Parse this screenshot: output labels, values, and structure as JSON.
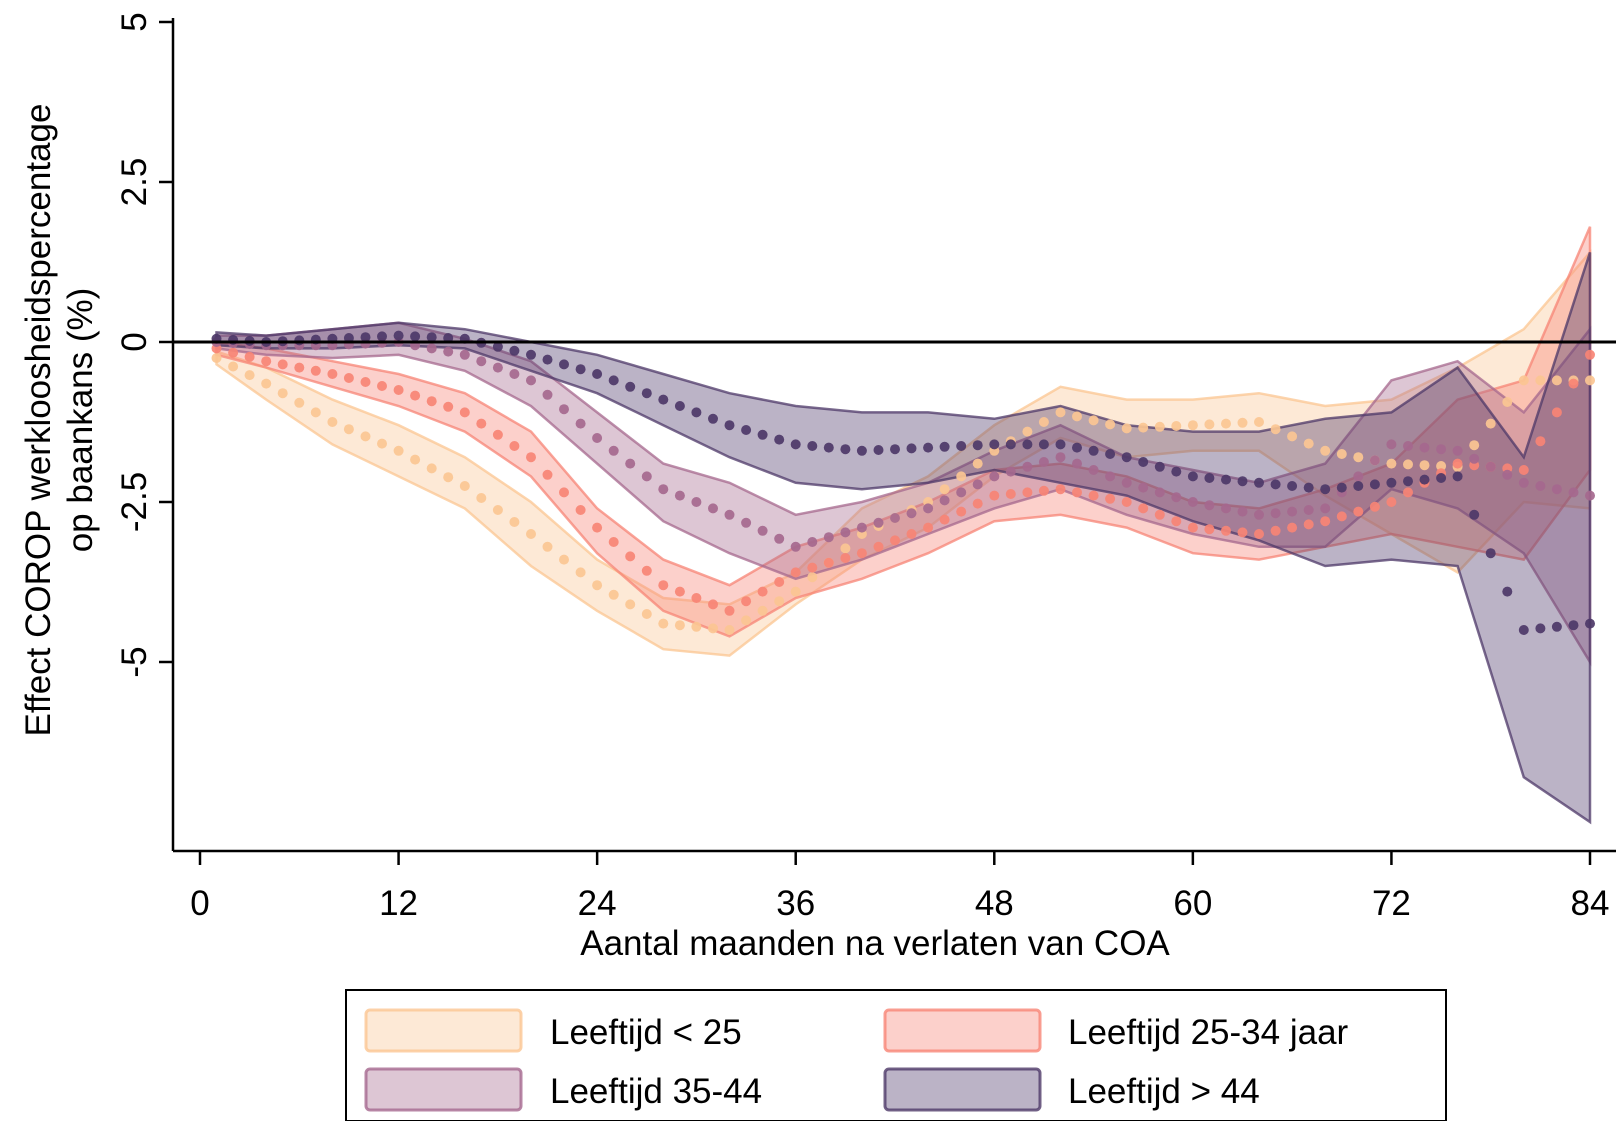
{
  "chart_data": {
    "type": "scatter",
    "title": "",
    "xlabel": "Aantal maanden na verlaten van COA",
    "ylabel_line1": "Effect COROP werkloosheidspercentage",
    "ylabel_line2": "op baankans (%)",
    "xlim": [
      0,
      84
    ],
    "ylim": [
      -7.75,
      5
    ],
    "x_ticks": [
      0,
      12,
      24,
      36,
      48,
      60,
      72,
      84
    ],
    "x_tick_labels": [
      "0",
      "12",
      "24",
      "36",
      "48",
      "60",
      "72",
      "84"
    ],
    "y_ticks": [
      5,
      2.5,
      0,
      -2.5,
      -5
    ],
    "y_tick_labels": [
      "5",
      "2.5",
      "0",
      "-2.5",
      "-5"
    ],
    "reference_line_y": 0,
    "grid": false,
    "legend_position": "bottom",
    "series": [
      {
        "name": "Leeftijd < 25",
        "color": "#fbc592",
        "x": [
          1,
          4,
          8,
          12,
          16,
          20,
          24,
          28,
          32,
          36,
          40,
          44,
          48,
          52,
          56,
          60,
          64,
          68,
          72,
          76,
          80,
          84
        ],
        "y": [
          -0.25,
          -0.65,
          -1.25,
          -1.7,
          -2.25,
          -3.0,
          -3.8,
          -4.4,
          -4.5,
          -3.9,
          -3.0,
          -2.5,
          -1.7,
          -1.1,
          -1.35,
          -1.3,
          -1.25,
          -1.7,
          -1.9,
          -1.95,
          -0.6,
          -0.6
        ],
        "lower": [
          -0.35,
          -0.9,
          -1.6,
          -2.1,
          -2.6,
          -3.5,
          -4.2,
          -4.8,
          -4.9,
          -4.1,
          -3.4,
          -2.9,
          -2.1,
          -1.5,
          -1.8,
          -1.7,
          -1.7,
          -2.4,
          -3.0,
          -3.6,
          -2.5,
          -2.6
        ],
        "upper": [
          -0.15,
          -0.4,
          -0.9,
          -1.3,
          -1.8,
          -2.5,
          -3.4,
          -4.0,
          -4.1,
          -3.6,
          -2.6,
          -2.1,
          -1.3,
          -0.7,
          -0.9,
          -0.9,
          -0.8,
          -1.0,
          -0.9,
          -0.4,
          0.2,
          1.4
        ]
      },
      {
        "name": "Leeftijd 25-34 jaar",
        "color": "#f78475",
        "x": [
          1,
          4,
          8,
          12,
          16,
          20,
          24,
          28,
          32,
          36,
          40,
          44,
          48,
          52,
          56,
          60,
          64,
          68,
          72,
          76,
          80,
          84
        ],
        "y": [
          -0.1,
          -0.3,
          -0.5,
          -0.75,
          -1.1,
          -1.8,
          -2.9,
          -3.8,
          -4.2,
          -3.6,
          -3.3,
          -2.9,
          -2.4,
          -2.3,
          -2.5,
          -2.9,
          -3.0,
          -2.8,
          -2.5,
          -1.9,
          -2.0,
          -0.2
        ],
        "lower": [
          -0.2,
          -0.4,
          -0.7,
          -1.0,
          -1.4,
          -2.1,
          -3.3,
          -4.2,
          -4.6,
          -4.0,
          -3.7,
          -3.3,
          -2.8,
          -2.7,
          -2.9,
          -3.3,
          -3.4,
          -3.2,
          -3.0,
          -3.2,
          -3.4,
          -2.0
        ],
        "upper": [
          0.0,
          -0.1,
          -0.3,
          -0.5,
          -0.8,
          -1.4,
          -2.6,
          -3.4,
          -3.8,
          -3.2,
          -2.9,
          -2.5,
          -2.0,
          -1.9,
          -2.1,
          -2.5,
          -2.6,
          -2.3,
          -1.9,
          -0.9,
          -0.6,
          1.8
        ]
      },
      {
        "name": "Leeftijd 35-44",
        "color": "#a5688e",
        "x": [
          1,
          4,
          8,
          12,
          16,
          20,
          24,
          28,
          32,
          36,
          40,
          44,
          48,
          52,
          56,
          60,
          64,
          68,
          72,
          76,
          80,
          84
        ],
        "y": [
          0.0,
          -0.05,
          -0.05,
          0.0,
          -0.2,
          -0.6,
          -1.5,
          -2.3,
          -2.7,
          -3.2,
          -2.9,
          -2.6,
          -2.1,
          -1.8,
          -2.2,
          -2.5,
          -2.7,
          -2.6,
          -1.6,
          -1.7,
          -2.2,
          -2.4
        ],
        "lower": [
          -0.1,
          -0.2,
          -0.25,
          -0.2,
          -0.45,
          -1.0,
          -1.9,
          -2.8,
          -3.3,
          -3.7,
          -3.4,
          -3.0,
          -2.6,
          -2.3,
          -2.7,
          -3.0,
          -3.2,
          -3.2,
          -2.3,
          -2.6,
          -3.3,
          -5.0
        ],
        "upper": [
          0.1,
          0.1,
          0.2,
          0.3,
          0.05,
          -0.3,
          -1.1,
          -1.9,
          -2.2,
          -2.7,
          -2.5,
          -2.2,
          -1.7,
          -1.3,
          -1.8,
          -2.0,
          -2.2,
          -1.9,
          -0.6,
          -0.3,
          -1.1,
          0.2
        ]
      },
      {
        "name": "Leeftijd > 44",
        "color": "#4d3868",
        "x": [
          1,
          4,
          8,
          12,
          16,
          20,
          24,
          28,
          32,
          36,
          40,
          44,
          48,
          52,
          56,
          60,
          64,
          68,
          72,
          76,
          80,
          84
        ],
        "y": [
          0.05,
          0.0,
          0.05,
          0.1,
          0.05,
          -0.2,
          -0.5,
          -0.9,
          -1.3,
          -1.6,
          -1.7,
          -1.65,
          -1.6,
          -1.6,
          -1.8,
          -2.1,
          -2.2,
          -2.3,
          -2.2,
          -2.1,
          -4.5,
          -4.4
        ],
        "lower": [
          -0.05,
          -0.1,
          -0.1,
          -0.05,
          -0.1,
          -0.45,
          -0.8,
          -1.3,
          -1.8,
          -2.2,
          -2.3,
          -2.2,
          -2.0,
          -2.2,
          -2.4,
          -2.8,
          -3.1,
          -3.5,
          -3.4,
          -3.5,
          -6.8,
          -7.5
        ],
        "upper": [
          0.15,
          0.1,
          0.2,
          0.3,
          0.2,
          0.0,
          -0.2,
          -0.5,
          -0.8,
          -1.0,
          -1.1,
          -1.1,
          -1.2,
          -1.0,
          -1.3,
          -1.4,
          -1.4,
          -1.2,
          -1.1,
          -0.4,
          -1.8,
          1.4
        ]
      }
    ]
  }
}
